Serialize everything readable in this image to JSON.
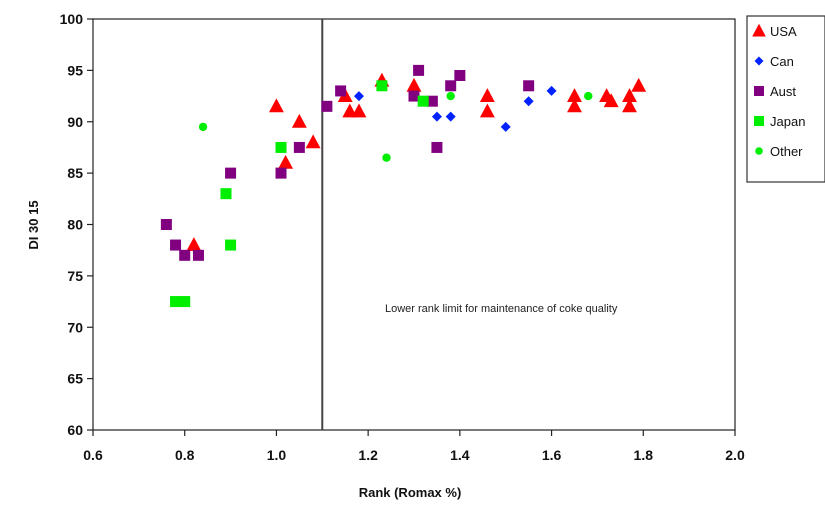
{
  "chart_data": {
    "type": "scatter",
    "title": "",
    "xlabel": "Rank (Romax %)",
    "ylabel": "DI 30 15",
    "xlim": [
      0.6,
      2.0
    ],
    "ylim": [
      60,
      100
    ],
    "x_ticks": [
      0.6,
      0.8,
      1.0,
      1.2,
      1.4,
      1.6,
      1.8,
      2.0
    ],
    "y_ticks": [
      60,
      65,
      70,
      75,
      80,
      85,
      90,
      95,
      100
    ],
    "x_tick_labels": [
      "0.6",
      "0.8",
      "1.0",
      "1.2",
      "1.4",
      "1.6",
      "1.8",
      "2.0"
    ],
    "y_tick_labels": [
      "60",
      "65",
      "70",
      "75",
      "80",
      "85",
      "90",
      "95",
      "100"
    ],
    "grid": false,
    "legend_position": "right",
    "reference_line": {
      "x": 1.1
    },
    "annotation": "Lower rank limit for maintenance of coke quality",
    "series": [
      {
        "name": "USA",
        "marker": "triangle",
        "color": "#ff0000",
        "points": [
          [
            0.82,
            78
          ],
          [
            1.0,
            91.5
          ],
          [
            1.02,
            86
          ],
          [
            1.05,
            90
          ],
          [
            1.08,
            88
          ],
          [
            1.15,
            92.5
          ],
          [
            1.16,
            91
          ],
          [
            1.18,
            91
          ],
          [
            1.23,
            94
          ],
          [
            1.3,
            93.5
          ],
          [
            1.46,
            92.5
          ],
          [
            1.46,
            91
          ],
          [
            1.65,
            92.5
          ],
          [
            1.65,
            91.5
          ],
          [
            1.72,
            92.5
          ],
          [
            1.73,
            92
          ],
          [
            1.77,
            92.5
          ],
          [
            1.77,
            91.5
          ],
          [
            1.79,
            93.5
          ]
        ]
      },
      {
        "name": "Can",
        "marker": "diamond",
        "color": "#0022ff",
        "points": [
          [
            1.18,
            92.5
          ],
          [
            1.35,
            90.5
          ],
          [
            1.38,
            90.5
          ],
          [
            1.5,
            89.5
          ],
          [
            1.55,
            92
          ],
          [
            1.6,
            93
          ]
        ]
      },
      {
        "name": "Aust",
        "marker": "square",
        "color": "#800080",
        "points": [
          [
            0.76,
            80
          ],
          [
            0.78,
            78
          ],
          [
            0.8,
            77
          ],
          [
            0.83,
            77
          ],
          [
            0.9,
            85
          ],
          [
            1.01,
            85
          ],
          [
            1.05,
            87.5
          ],
          [
            1.11,
            91.5
          ],
          [
            1.14,
            93
          ],
          [
            1.3,
            92.5
          ],
          [
            1.31,
            95
          ],
          [
            1.34,
            92
          ],
          [
            1.35,
            87.5
          ],
          [
            1.38,
            93.5
          ],
          [
            1.4,
            94.5
          ],
          [
            1.55,
            93.5
          ]
        ]
      },
      {
        "name": "Japan",
        "marker": "square",
        "color": "#00ee00",
        "points": [
          [
            0.78,
            72.5
          ],
          [
            0.8,
            72.5
          ],
          [
            0.89,
            83
          ],
          [
            0.9,
            78
          ],
          [
            1.01,
            87.5
          ],
          [
            1.23,
            93.5
          ],
          [
            1.32,
            92
          ]
        ]
      },
      {
        "name": "Other",
        "marker": "circle",
        "color": "#00ee00",
        "points": [
          [
            0.84,
            89.5
          ],
          [
            1.24,
            86.5
          ],
          [
            1.38,
            92.5
          ],
          [
            1.68,
            92.5
          ]
        ]
      }
    ]
  }
}
